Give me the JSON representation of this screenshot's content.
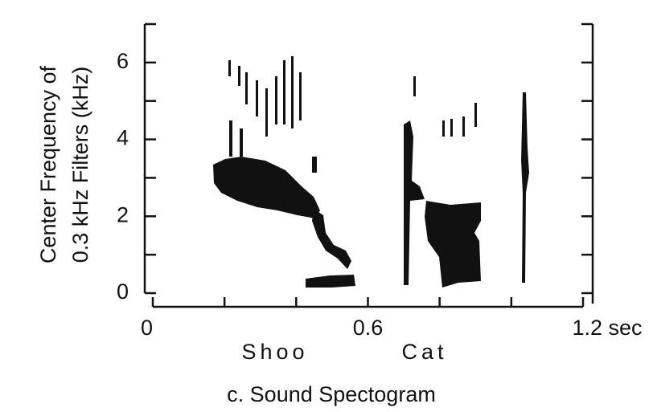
{
  "chart_data": {
    "type": "spectrogram",
    "title": "c. Sound Spectogram",
    "y_label": [
      "Center Frequency of",
      "0.3 kHz Filters (kHz)"
    ],
    "annotations": [
      "Shoo",
      "Cat"
    ],
    "xlim": [
      0,
      1.2
    ],
    "xticks": [
      0,
      0.6,
      {
        "value": 1.2,
        "label": "1.2 sec"
      }
    ],
    "xminor_ticks": [
      0.2,
      0.4,
      0.8,
      1.0
    ],
    "ylim": [
      0,
      7
    ],
    "yticks": [
      0,
      2,
      4,
      6
    ],
    "yminor_ticks": [
      1,
      3,
      5,
      7
    ],
    "color": "#111111"
  }
}
